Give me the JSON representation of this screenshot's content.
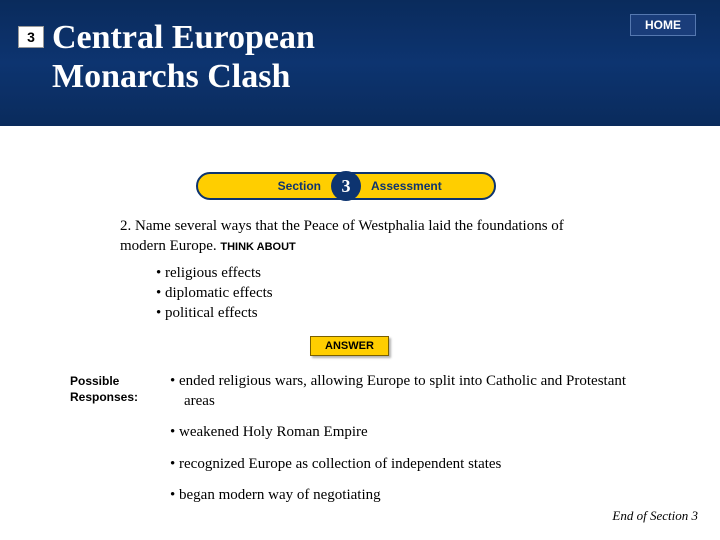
{
  "colors": {
    "header_bg": "#0d3470",
    "accent_yellow": "#ffce00",
    "white": "#ffffff",
    "black": "#000000"
  },
  "header": {
    "section_number": "3",
    "title_line1": "Central European",
    "title_line2": "Monarchs Clash",
    "home_label": "HOME"
  },
  "pill": {
    "left_label": "Section",
    "number": "3",
    "right_label": "Assessment"
  },
  "question": {
    "text": "2. Name several ways that the Peace of Westphalia laid the foundations of modern Europe.",
    "think_about_label": "THINK ABOUT",
    "effects": [
      "religious effects",
      "diplomatic effects",
      "political effects"
    ]
  },
  "answer_button": "ANSWER",
  "responses": {
    "label_line1": "Possible",
    "label_line2": "Responses:",
    "items": [
      "ended religious wars, allowing Europe to split into Catholic and Protestant areas",
      "weakened Holy Roman Empire",
      "recognized Europe as collection of independent states",
      "began modern way of negotiating"
    ]
  },
  "footer": "End of Section 3"
}
